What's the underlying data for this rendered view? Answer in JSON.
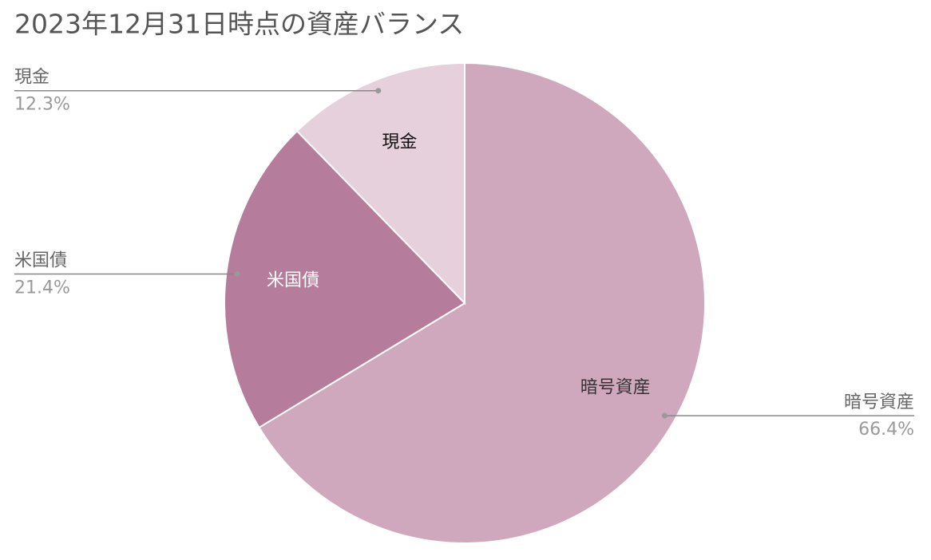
{
  "chart_data": {
    "type": "pie",
    "title": "2023年12月31日時点の資産バランス",
    "categories": [
      "暗号資産",
      "米国債",
      "現金"
    ],
    "values": [
      66.4,
      21.4,
      12.3
    ],
    "value_labels": [
      "66.4%",
      "21.4%",
      "12.3%"
    ],
    "colors": [
      "#cfa8bd",
      "#b67c9b",
      "#e6d0dc"
    ]
  }
}
